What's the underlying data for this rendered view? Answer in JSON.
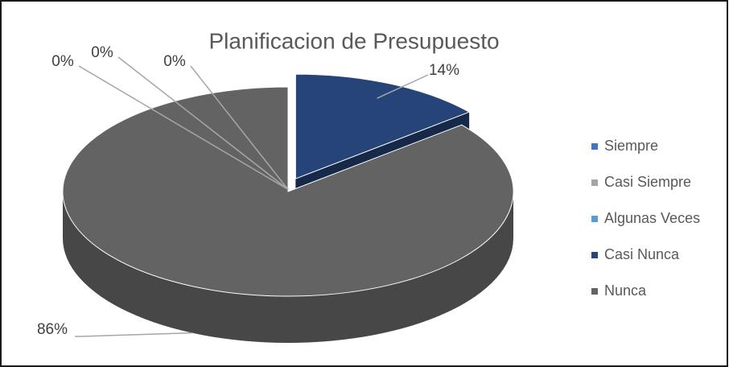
{
  "chart_data": {
    "type": "pie",
    "title": "Planificacion de Presupuesto",
    "categories": [
      "Siempre",
      "Casi Siempre",
      "Algunas Veces",
      "Casi Nunca",
      "Nunca"
    ],
    "values": [
      0,
      0,
      0,
      14,
      86
    ],
    "value_labels": [
      "0%",
      "0%",
      "0%",
      "14%",
      "86%"
    ],
    "colors": [
      "#4472c4",
      "#a5a5a5",
      "#5b9bd5",
      "#264478",
      "#636363"
    ],
    "legend": "right"
  }
}
